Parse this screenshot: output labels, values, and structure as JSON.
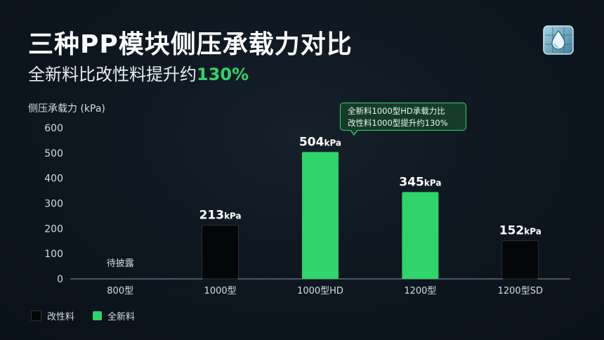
{
  "header": {
    "title": "三种PP模块侧压承载力对比",
    "subtitle_prefix": "全新料比改性料提升约",
    "subtitle_highlight": "130%"
  },
  "badge": {
    "icon": "water-drop-grid-icon"
  },
  "callout": {
    "line1": "全新料1000型HD承载力比",
    "line2": "改性料1000型提升约130%"
  },
  "colors": {
    "modified": "#050607",
    "new_material": "#2fd46a",
    "accent": "#2fd46a"
  },
  "legend": [
    {
      "label": "改性料",
      "color": "#050607"
    },
    {
      "label": "全新料",
      "color": "#2fd46a"
    }
  ],
  "chart_data": {
    "type": "bar",
    "ylabel": "侧压承载力 (kPa)",
    "ylim": [
      0,
      600
    ],
    "yticks": [
      "0",
      "100",
      "200",
      "300",
      "400",
      "500",
      "600"
    ],
    "grid": false,
    "legend_position": "bottom-left",
    "categories": [
      "800型",
      "1000型",
      "1000型HD",
      "1200型",
      "1200型SD"
    ],
    "values": [
      null,
      213,
      504,
      345,
      152
    ],
    "material": [
      "",
      "改性料",
      "全新料",
      "全新料",
      "改性料"
    ],
    "value_labels": [
      "",
      "213",
      "504",
      "345",
      "152"
    ],
    "unit_label": "kPa",
    "pending_label": "待披露"
  }
}
